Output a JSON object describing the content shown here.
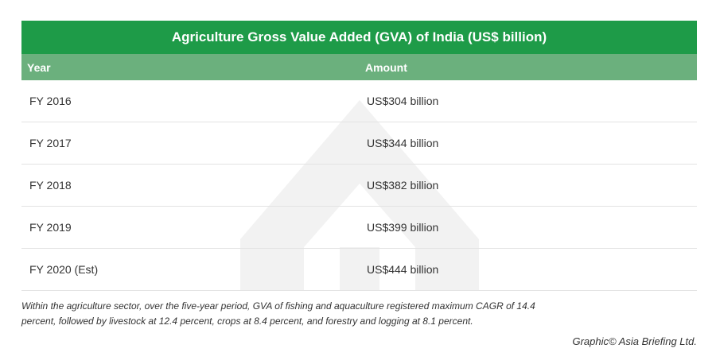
{
  "chart_data": {
    "type": "table",
    "title": "Agriculture Gross Value Added (GVA) of India (US$ billion)",
    "columns": [
      "Year",
      "Amount"
    ],
    "rows": [
      {
        "year": "FY 2016",
        "amount": "US$304 billion",
        "value": 304
      },
      {
        "year": "FY 2017",
        "amount": "US$344 billion",
        "value": 344
      },
      {
        "year": "FY 2018",
        "amount": "US$382 billion",
        "value": 382
      },
      {
        "year": "FY 2019",
        "amount": "US$399 billion",
        "value": 399
      },
      {
        "year": "FY 2020 (Est)",
        "amount": "US$444 billion",
        "value": 444
      }
    ]
  },
  "footnote": {
    "line1": "Within the agriculture sector, over the five-year period, GVA of fishing and aquaculture registered maximum CAGR of 14.4",
    "line2": "percent, followed by livestock at 12.4 percent, crops at 8.4 percent, and forestry and logging at 8.1 percent."
  },
  "credit": "Graphic© Asia Briefing Ltd.",
  "colors": {
    "title_bg": "#1e9b48",
    "header_bg": "#6bb07d",
    "row_divider": "#e3e3e3",
    "watermark": "#f2f2f2"
  },
  "watermark_icon": "asia-briefing-logo-icon"
}
